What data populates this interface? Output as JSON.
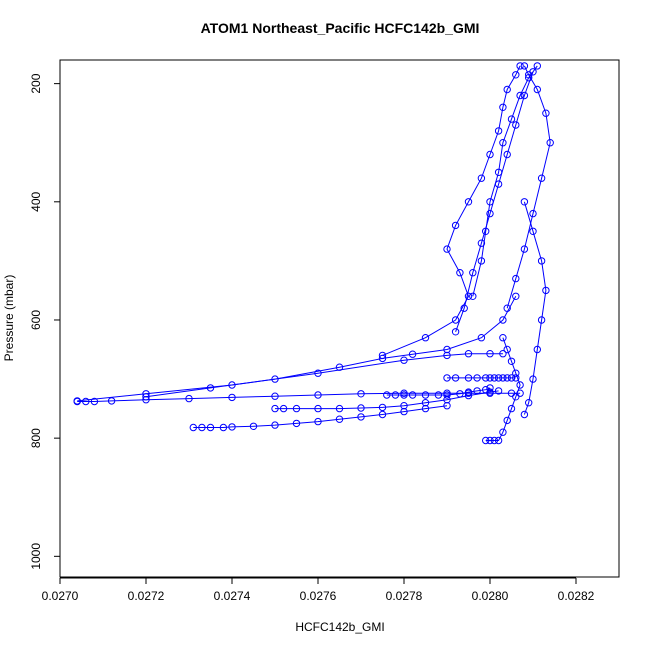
{
  "chart_data": {
    "type": "line",
    "title": "ATOM1 Northeast_Pacific HCFC142b_GMI",
    "xlabel": "HCFC142b_GMI",
    "ylabel": "Pressure (mbar)",
    "xlim": [
      0.027,
      0.0283
    ],
    "ylim": [
      1035,
      160
    ],
    "y_reversed": true,
    "grid": false,
    "legend": "none",
    "x_ticks": [
      "0.0270",
      "0.0272",
      "0.0274",
      "0.0276",
      "0.0278",
      "0.0280",
      "0.0282"
    ],
    "x_tick_values": [
      0.027,
      0.0272,
      0.0274,
      0.0276,
      0.0278,
      0.028,
      0.0282
    ],
    "y_ticks": [
      "200",
      "400",
      "600",
      "800",
      "1000"
    ],
    "y_tick_values": [
      200,
      400,
      600,
      800,
      1000
    ],
    "series_color": "#0000ff",
    "series": [
      {
        "x": [
          0.02704,
          0.02706,
          0.02708,
          0.02712,
          0.0272,
          0.0273,
          0.0274,
          0.0275,
          0.0276,
          0.0277,
          0.0278,
          0.0279,
          0.02795,
          0.028,
          0.02805,
          0.02807
        ],
        "y": [
          738,
          738,
          738,
          737,
          735,
          733,
          731,
          729,
          727,
          725,
          724,
          724,
          724,
          724,
          724,
          724
        ]
      },
      {
        "x": [
          0.02704,
          0.0272,
          0.0274,
          0.0276,
          0.0278,
          0.0279,
          0.02795,
          0.028,
          0.02803
        ],
        "y": [
          737,
          725,
          710,
          690,
          668,
          660,
          657,
          657,
          657
        ]
      },
      {
        "x": [
          0.02731,
          0.02733,
          0.02735,
          0.02738,
          0.0274,
          0.02745,
          0.0275,
          0.02755,
          0.0276,
          0.02765,
          0.0277,
          0.02775,
          0.0278,
          0.02785,
          0.0279
        ],
        "y": [
          782,
          782,
          782,
          782,
          781,
          780,
          778,
          775,
          772,
          768,
          764,
          760,
          755,
          750,
          745
        ]
      },
      {
        "x": [
          0.0275,
          0.02752,
          0.02755,
          0.0276,
          0.02765,
          0.0277,
          0.02775,
          0.0278,
          0.02785,
          0.0279,
          0.02795,
          0.028,
          0.02802
        ],
        "y": [
          750,
          750,
          750,
          750,
          750,
          749,
          748,
          745,
          740,
          735,
          728,
          722,
          720
        ]
      },
      {
        "x": [
          0.0272,
          0.02735,
          0.0275,
          0.02765,
          0.02775,
          0.02782,
          0.0279,
          0.02798,
          0.02803,
          0.02806
        ],
        "y": [
          730,
          715,
          700,
          680,
          665,
          658,
          650,
          630,
          600,
          560
        ]
      },
      {
        "x": [
          0.02776,
          0.02778,
          0.0278,
          0.02782,
          0.02785,
          0.02788,
          0.0279,
          0.02793,
          0.02795,
          0.02797,
          0.02799,
          0.028
        ],
        "y": [
          727,
          727,
          727,
          727,
          727,
          727,
          727,
          725,
          722,
          720,
          718,
          715
        ]
      },
      {
        "x": [
          0.02775,
          0.02785,
          0.02792,
          0.02795,
          0.02793,
          0.0279,
          0.02792,
          0.02795,
          0.02798,
          0.028,
          0.02802,
          0.02803,
          0.02804,
          0.02806,
          0.02807
        ],
        "y": [
          660,
          630,
          600,
          560,
          520,
          480,
          440,
          400,
          360,
          320,
          280,
          240,
          210,
          185,
          170
        ]
      },
      {
        "x": [
          0.0279,
          0.02792,
          0.02795,
          0.02797,
          0.02799,
          0.028,
          0.02801,
          0.02802,
          0.02803,
          0.02804,
          0.02805,
          0.02806
        ],
        "y": [
          698,
          698,
          698,
          698,
          698,
          698,
          698,
          698,
          698,
          698,
          698,
          698
        ]
      },
      {
        "x": [
          0.02799,
          0.028,
          0.02801,
          0.02802,
          0.02803,
          0.02804,
          0.02805,
          0.02806,
          0.02807,
          0.02806,
          0.02805,
          0.02804,
          0.02803
        ],
        "y": [
          804,
          804,
          804,
          804,
          790,
          770,
          750,
          730,
          710,
          690,
          670,
          650,
          630
        ]
      },
      {
        "x": [
          0.02808,
          0.02809,
          0.0281,
          0.02811,
          0.02812,
          0.02813,
          0.02812,
          0.0281,
          0.02808
        ],
        "y": [
          760,
          740,
          700,
          650,
          600,
          550,
          500,
          450,
          400
        ]
      },
      {
        "x": [
          0.02804,
          0.02806,
          0.02808,
          0.0281,
          0.02812,
          0.02814,
          0.02813,
          0.02811,
          0.02809,
          0.02808
        ],
        "y": [
          580,
          530,
          480,
          420,
          360,
          300,
          250,
          210,
          185,
          170
        ]
      },
      {
        "x": [
          0.02792,
          0.02794,
          0.02796,
          0.02798,
          0.028,
          0.02802,
          0.02804,
          0.02806,
          0.02808,
          0.0281
        ],
        "y": [
          620,
          580,
          520,
          470,
          420,
          370,
          320,
          270,
          220,
          180
        ]
      },
      {
        "x": [
          0.02796,
          0.02798,
          0.02799,
          0.028,
          0.02802,
          0.02803,
          0.02805,
          0.02807,
          0.02809,
          0.02811
        ],
        "y": [
          560,
          500,
          450,
          400,
          350,
          300,
          260,
          220,
          190,
          170
        ]
      }
    ]
  }
}
